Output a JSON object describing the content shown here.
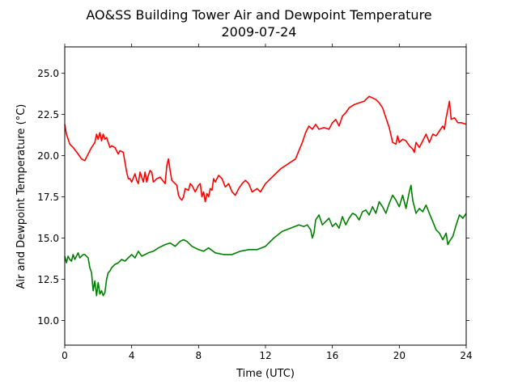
{
  "chart_data": {
    "type": "line",
    "title": "AO&SS Building Tower Air and Dewpoint Temperature",
    "subtitle": "2009-07-24",
    "xlabel": "Time (UTC)",
    "ylabel": "Air and Dewpoint Temperature (°C)",
    "xlim": [
      0,
      24
    ],
    "ylim": [
      8.5,
      26.6
    ],
    "x_ticks": [
      0,
      4,
      8,
      12,
      16,
      20,
      24
    ],
    "x_tick_labels": [
      "0",
      "4",
      "8",
      "12",
      "16",
      "20",
      "24"
    ],
    "y_ticks": [
      10.0,
      12.5,
      15.0,
      17.5,
      20.0,
      22.5,
      25.0
    ],
    "y_tick_labels": [
      "10.0",
      "12.5",
      "15.0",
      "17.5",
      "20.0",
      "22.5",
      "25.0"
    ],
    "grid": false,
    "legend": "none",
    "series": [
      {
        "color": "#ff0000",
        "x": [
          0,
          0.1,
          0.3,
          0.5,
          0.8,
          1.0,
          1.2,
          1.4,
          1.6,
          1.8,
          1.9,
          2.0,
          2.1,
          2.2,
          2.3,
          2.4,
          2.5,
          2.6,
          2.7,
          2.8,
          3.0,
          3.2,
          3.3,
          3.5,
          3.7,
          3.8,
          3.9,
          4.0,
          4.2,
          4.3,
          4.4,
          4.5,
          4.6,
          4.7,
          4.8,
          4.9,
          5.0,
          5.1,
          5.2,
          5.3,
          5.5,
          5.7,
          6.0,
          6.1,
          6.2,
          6.3,
          6.4,
          6.5,
          6.7,
          6.8,
          6.9,
          7.0,
          7.1,
          7.2,
          7.4,
          7.5,
          7.6,
          7.8,
          8.0,
          8.1,
          8.2,
          8.3,
          8.4,
          8.5,
          8.6,
          8.7,
          8.8,
          8.9,
          9.0,
          9.2,
          9.4,
          9.6,
          9.8,
          10.0,
          10.2,
          10.4,
          10.6,
          10.8,
          11.0,
          11.2,
          11.5,
          11.7,
          12.0,
          12.3,
          12.6,
          12.9,
          13.2,
          13.5,
          13.8,
          14.0,
          14.2,
          14.4,
          14.6,
          14.8,
          15.0,
          15.2,
          15.5,
          15.8,
          16.0,
          16.2,
          16.4,
          16.6,
          16.8,
          17.0,
          17.3,
          17.6,
          17.9,
          18.0,
          18.2,
          18.4,
          18.6,
          18.8,
          19.0,
          19.2,
          19.4,
          19.6,
          19.8,
          19.9,
          20.0,
          20.2,
          20.4,
          20.6,
          20.8,
          20.9,
          21.0,
          21.2,
          21.4,
          21.6,
          21.8,
          22.0,
          22.2,
          22.4,
          22.6,
          22.7,
          22.8,
          22.9,
          23.0,
          23.1,
          23.3,
          23.5,
          23.7,
          24.0
        ],
        "values": [
          21.9,
          21.3,
          20.7,
          20.5,
          20.1,
          19.8,
          19.7,
          20.1,
          20.5,
          20.8,
          21.3,
          21.0,
          21.4,
          20.9,
          21.3,
          21.0,
          21.1,
          20.8,
          20.5,
          20.6,
          20.5,
          20.1,
          20.3,
          20.2,
          19.0,
          18.6,
          18.6,
          18.4,
          18.9,
          18.5,
          18.3,
          19.0,
          18.7,
          18.4,
          19.0,
          18.4,
          18.8,
          19.1,
          19.0,
          18.4,
          18.6,
          18.7,
          18.3,
          19.4,
          19.8,
          19.1,
          18.5,
          18.4,
          18.2,
          17.6,
          17.4,
          17.3,
          17.5,
          18.0,
          17.9,
          18.3,
          18.2,
          17.8,
          18.2,
          18.3,
          17.5,
          17.8,
          17.2,
          17.7,
          17.5,
          18.0,
          17.9,
          18.6,
          18.4,
          18.8,
          18.6,
          18.1,
          18.3,
          17.8,
          17.6,
          18.0,
          18.3,
          18.5,
          18.3,
          17.8,
          18.0,
          17.8,
          18.3,
          18.6,
          18.9,
          19.2,
          19.4,
          19.6,
          19.8,
          20.3,
          20.8,
          21.4,
          21.8,
          21.6,
          21.9,
          21.6,
          21.7,
          21.6,
          22.0,
          22.2,
          21.8,
          22.4,
          22.6,
          22.9,
          23.1,
          23.2,
          23.3,
          23.4,
          23.6,
          23.5,
          23.4,
          23.2,
          22.9,
          22.3,
          21.7,
          20.8,
          20.7,
          21.2,
          20.8,
          21.0,
          20.9,
          20.6,
          20.4,
          20.2,
          20.8,
          20.5,
          20.9,
          21.3,
          20.8,
          21.3,
          21.2,
          21.5,
          21.8,
          21.6,
          22.3,
          22.8,
          23.3,
          22.2,
          22.3,
          22.0,
          22.0,
          21.9
        ]
      },
      {
        "color": "#008000",
        "x": [
          0,
          0.1,
          0.2,
          0.3,
          0.4,
          0.5,
          0.6,
          0.7,
          0.8,
          0.9,
          1.0,
          1.1,
          1.2,
          1.3,
          1.4,
          1.5,
          1.6,
          1.7,
          1.8,
          1.9,
          2.0,
          2.1,
          2.2,
          2.3,
          2.4,
          2.5,
          2.6,
          2.7,
          2.8,
          3.0,
          3.2,
          3.4,
          3.6,
          3.8,
          4.0,
          4.2,
          4.4,
          4.6,
          4.8,
          5.0,
          5.3,
          5.6,
          6.0,
          6.3,
          6.6,
          6.9,
          7.1,
          7.3,
          7.6,
          8.0,
          8.3,
          8.6,
          9.0,
          9.5,
          10.0,
          10.5,
          11.0,
          11.5,
          12.0,
          12.5,
          13.0,
          13.5,
          14.0,
          14.3,
          14.5,
          14.7,
          14.8,
          14.9,
          15.0,
          15.2,
          15.4,
          15.6,
          15.8,
          16.0,
          16.2,
          16.4,
          16.6,
          16.8,
          17.0,
          17.2,
          17.4,
          17.6,
          17.8,
          18.0,
          18.2,
          18.4,
          18.6,
          18.8,
          19.0,
          19.2,
          19.4,
          19.6,
          19.8,
          20.0,
          20.2,
          20.4,
          20.6,
          20.7,
          20.8,
          21.0,
          21.2,
          21.4,
          21.6,
          21.8,
          22.0,
          22.2,
          22.4,
          22.6,
          22.8,
          22.9,
          23.0,
          23.2,
          23.4,
          23.6,
          23.8,
          24.0
        ],
        "values": [
          13.9,
          13.5,
          13.9,
          13.7,
          13.6,
          14.0,
          13.7,
          13.9,
          14.1,
          13.8,
          13.9,
          14.0,
          14.0,
          13.9,
          13.8,
          13.2,
          12.9,
          11.8,
          12.4,
          11.5,
          12.3,
          11.6,
          11.8,
          11.5,
          11.7,
          12.5,
          12.9,
          13.0,
          13.2,
          13.4,
          13.5,
          13.7,
          13.6,
          13.8,
          14.0,
          13.8,
          14.2,
          13.9,
          14.0,
          14.1,
          14.2,
          14.4,
          14.6,
          14.7,
          14.5,
          14.8,
          14.9,
          14.8,
          14.5,
          14.3,
          14.2,
          14.4,
          14.1,
          14.0,
          14.0,
          14.2,
          14.3,
          14.3,
          14.5,
          15.0,
          15.4,
          15.6,
          15.8,
          15.7,
          15.8,
          15.5,
          15.0,
          15.3,
          16.1,
          16.4,
          15.8,
          16.0,
          16.2,
          15.7,
          15.9,
          15.6,
          16.3,
          15.8,
          16.2,
          16.5,
          16.4,
          16.1,
          16.6,
          16.7,
          16.4,
          16.9,
          16.5,
          17.2,
          16.9,
          16.5,
          17.1,
          17.6,
          17.3,
          16.9,
          17.6,
          16.8,
          17.8,
          18.2,
          17.3,
          16.5,
          16.8,
          16.6,
          17.0,
          16.5,
          16.0,
          15.5,
          15.3,
          14.9,
          15.3,
          14.6,
          14.8,
          15.1,
          15.8,
          16.4,
          16.2,
          16.5
        ]
      }
    ]
  }
}
